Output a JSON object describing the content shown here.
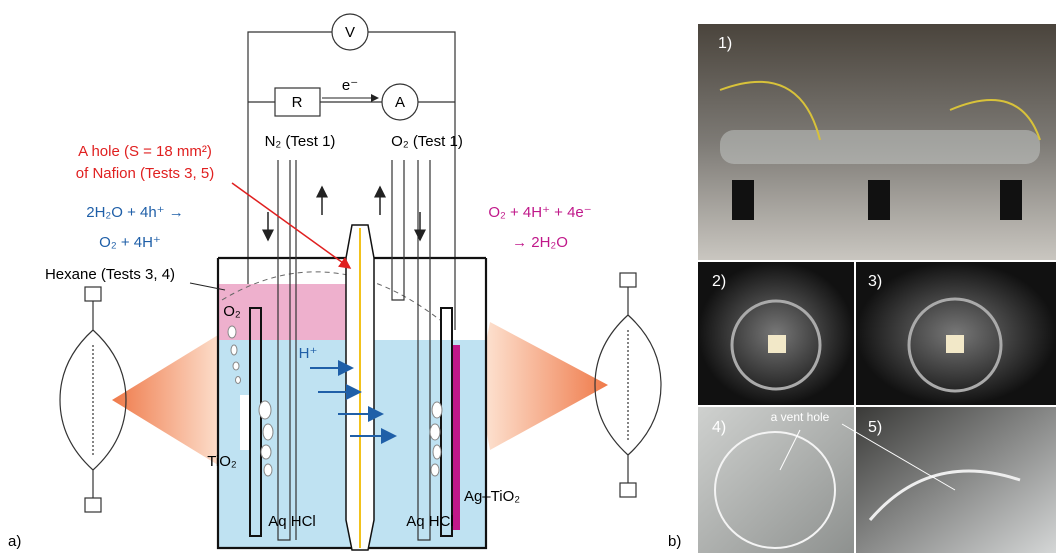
{
  "panel_a": {
    "label": "a)",
    "voltmeter": "V",
    "resistor": "R",
    "electron": "e⁻",
    "ammeter": "A",
    "hole_note": [
      "A hole (S = 18 mm²)",
      "of Nafion (Tests 3, 5)"
    ],
    "gas_left": "N₂ (Test 1)",
    "gas_right": "O₂ (Test 1)",
    "reaction_left": [
      "2H₂O + 4h⁺ →",
      "O₂ + 4H⁺"
    ],
    "reaction_right": [
      "O₂ + 4H⁺ + 4e⁻",
      "→ 2H₂O"
    ],
    "hexane": "Hexane (Tests 3, 4)",
    "bubble_gas": "O₂",
    "proton": "H⁺",
    "electrode_left": "TiO₂",
    "electrode_right": "Ag–TiO₂",
    "electrolyte_left": "Aq HCl",
    "electrolyte_right": "Aq HCl"
  },
  "panel_b": {
    "label": "b)",
    "photos": [
      "1)",
      "2)",
      "3)",
      "4)",
      "5)"
    ],
    "vent_note": "a vent hole"
  }
}
